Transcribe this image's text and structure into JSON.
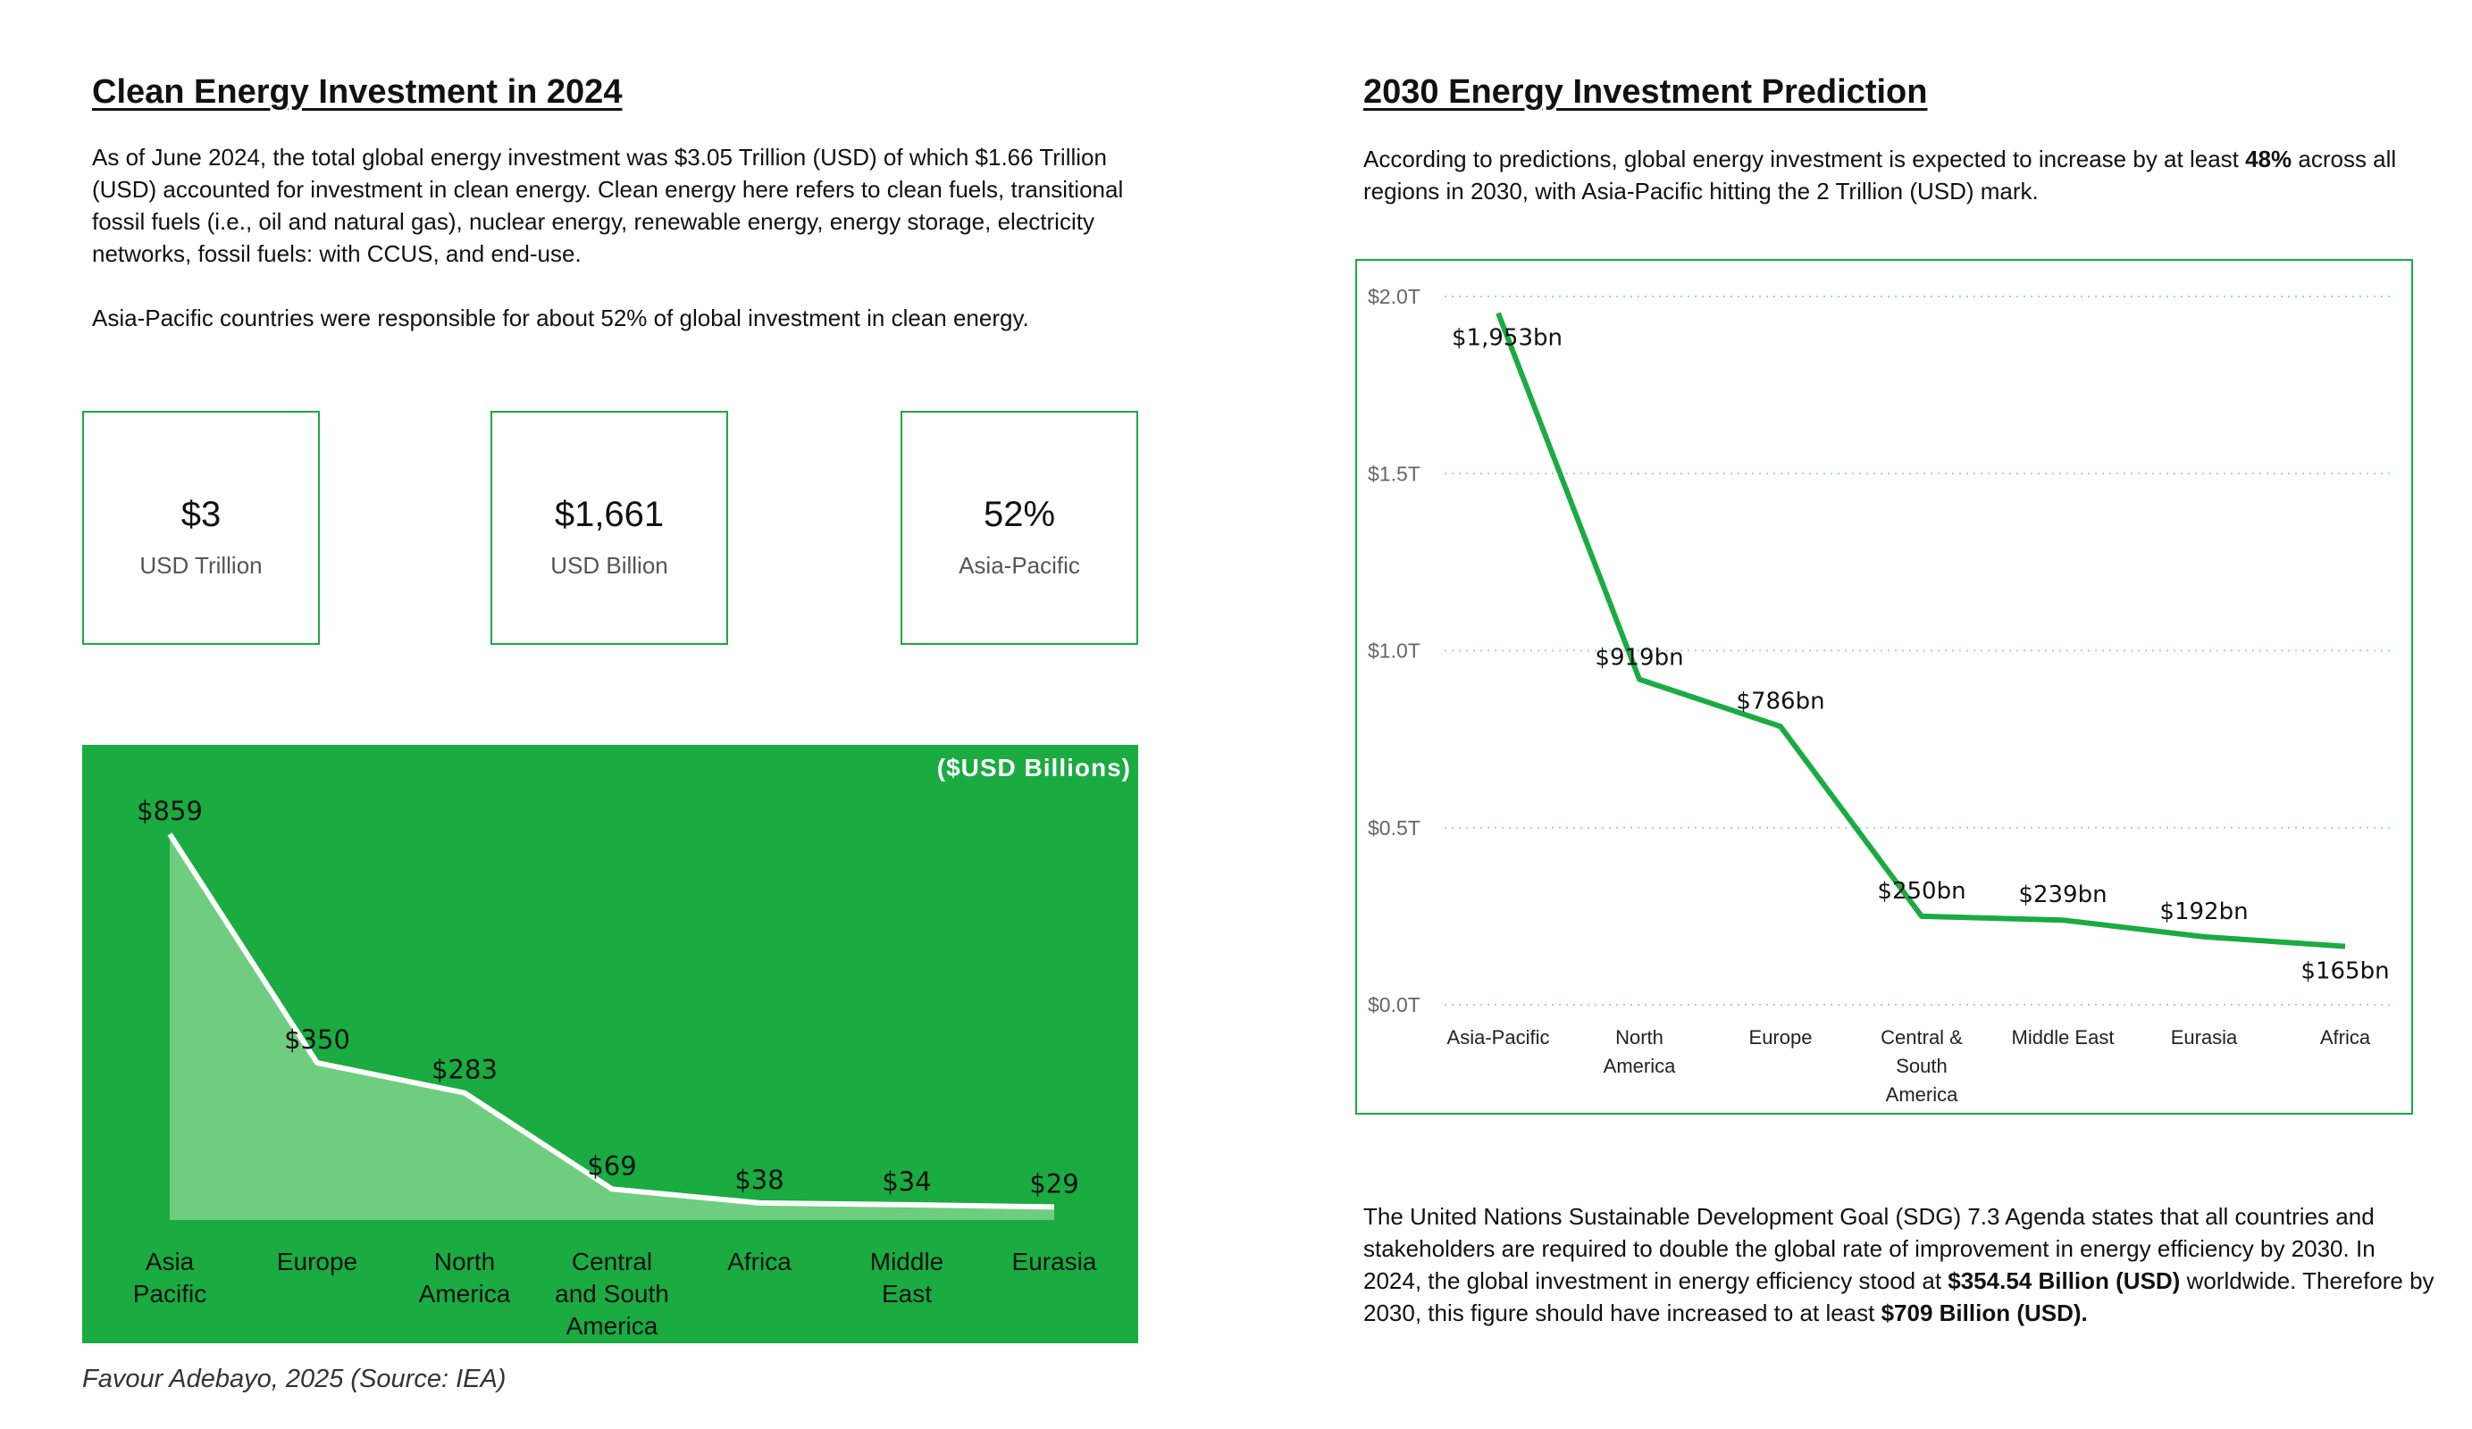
{
  "left": {
    "title": "Clean Energy Investment in 2024",
    "para1": "As of June 2024, the total global energy investment was $3.05 Trillion (USD) of which $1.66 Trillion (USD) accounted for investment in clean energy. Clean energy here refers to clean fuels, transitional fossil fuels (i.e., oil and natural gas), nuclear energy, renewable energy, energy storage, electricity networks, fossil fuels: with CCUS, and end-use.",
    "para2": "Asia-Pacific countries were responsible for about 52% of global investment in clean energy."
  },
  "kpis": [
    {
      "value": "$3",
      "label": "USD Trillion"
    },
    {
      "value": "$1,661",
      "label": "USD Billion"
    },
    {
      "value": "52%",
      "label": "Asia-Pacific"
    }
  ],
  "right": {
    "title": "2030 Energy Investment Prediction",
    "intro_a": "According to predictions, global energy investment is expected to increase by at least ",
    "intro_bold": "48%",
    "intro_b": " across all regions in 2030, with Asia-Pacific hitting the 2 Trillion (USD) mark.",
    "sdg_a": "The United Nations Sustainable Development Goal (SDG) 7.3 Agenda states that all countries and stakeholders are required to double the global rate of improvement in energy efficiency by 2030. In 2024, the global investment in energy efficiency stood at ",
    "sdg_bold1": "$354.54 Billion (USD)",
    "sdg_b": " worldwide. Therefore by 2030, this figure should have increased to at least ",
    "sdg_bold2": "$709 Billion (USD)."
  },
  "credit": "Favour Adebayo, 2025  (Source: IEA)",
  "colors": {
    "accent": "#1aab41",
    "area_fill": "#6fcd7f",
    "line_white": "#ffffff",
    "line_green": "#1aab41"
  },
  "chart_data": [
    {
      "type": "area",
      "unit_label": "($USD Billions)",
      "categories": [
        [
          "Asia",
          "Pacific"
        ],
        [
          "Europe"
        ],
        [
          "North",
          "America"
        ],
        [
          "Central",
          "and South",
          "America"
        ],
        [
          "Africa"
        ],
        [
          "Middle",
          "East"
        ],
        [
          "Eurasia"
        ]
      ],
      "values": [
        859,
        350,
        283,
        69,
        38,
        34,
        29
      ],
      "data_labels": [
        "$859",
        "$350",
        "$283",
        "$69",
        "$38",
        "$34",
        "$29"
      ],
      "ylim": [
        0,
        859
      ],
      "grid": false
    },
    {
      "type": "line",
      "categories": [
        [
          "Asia-Pacific"
        ],
        [
          "North",
          "America"
        ],
        [
          "Europe"
        ],
        [
          "Central &",
          "South",
          "America"
        ],
        [
          "Middle East"
        ],
        [
          "Eurasia"
        ],
        [
          "Africa"
        ]
      ],
      "values": [
        1953,
        919,
        786,
        250,
        239,
        192,
        165
      ],
      "data_labels": [
        "$1,953bn",
        "$919bn",
        "$786bn",
        "$250bn",
        "$239bn",
        "$192bn",
        "$165bn"
      ],
      "y_ticks": [
        0,
        500,
        1000,
        1500,
        2000
      ],
      "y_tick_labels": [
        "$0.0T",
        "$0.5T",
        "$1.0T",
        "$1.5T",
        "$2.0T"
      ],
      "ylim": [
        0,
        2000
      ],
      "grid": "horizontal dotted"
    }
  ]
}
